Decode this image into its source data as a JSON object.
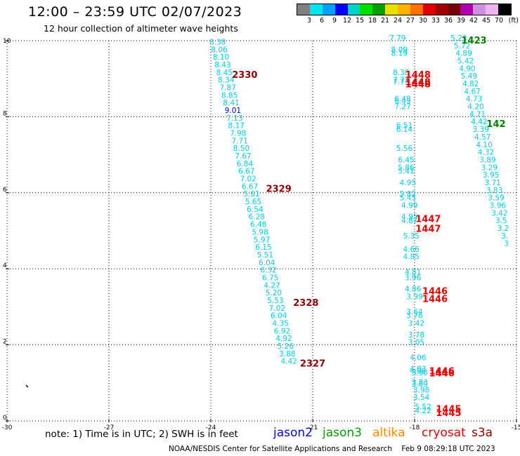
{
  "header": {
    "title": "12:00 – 23:59 UTC 02/07/2023",
    "subtitle": "12 hour collection of altimeter wave heights"
  },
  "legend": {
    "colors": [
      "#808080",
      "#00e5ee",
      "#00a0ff",
      "#0000ff",
      "#00d2c8",
      "#00e000",
      "#00a000",
      "#e8e000",
      "#ffb400",
      "#ff7000",
      "#e00000",
      "#a00000",
      "#780000",
      "#b000b0",
      "#d090e0",
      "#f0b4f0",
      "#000000"
    ],
    "labels": [
      "3",
      "6",
      "9",
      "12",
      "15",
      "18",
      "21",
      "24",
      "27",
      "30",
      "33",
      "36",
      "39",
      "42",
      "45",
      "70"
    ],
    "unit": "(ft)"
  },
  "map": {
    "x_ticks": [
      "-30",
      "-27",
      "-24",
      "-21",
      "-18",
      "-15"
    ],
    "y_ticks": [
      "0",
      "2",
      "4",
      "6",
      "8",
      "10"
    ]
  },
  "tracks": [
    {
      "color": "#00ccee",
      "points": [
        [
          -23.8,
          9.9,
          "8.38"
        ],
        [
          -23.75,
          9.7,
          "8.06"
        ],
        [
          -23.7,
          9.5,
          "8.10"
        ],
        [
          -23.65,
          9.3,
          "8.43"
        ],
        [
          -23.6,
          9.1,
          "8.45"
        ],
        [
          -23.55,
          8.9,
          "8.34"
        ],
        [
          -23.5,
          8.7,
          "7.87"
        ],
        [
          -23.45,
          8.5,
          "8.85"
        ],
        [
          -23.4,
          8.3,
          "8.41"
        ],
        [
          -23.35,
          8.1,
          "9.01"
        ],
        [
          -23.3,
          7.9,
          "7.13"
        ],
        [
          -23.25,
          7.7,
          "8.17"
        ],
        [
          -23.2,
          7.5,
          "7.98"
        ],
        [
          -23.15,
          7.3,
          "7.71"
        ],
        [
          -23.1,
          7.1,
          "8.50"
        ],
        [
          -23.05,
          6.9,
          "7.67"
        ],
        [
          -23.0,
          6.7,
          "6.84"
        ],
        [
          -22.95,
          6.5,
          "6.67"
        ],
        [
          -22.9,
          6.3,
          "7.02"
        ],
        [
          -22.85,
          6.1,
          "6.67"
        ],
        [
          -22.8,
          5.9,
          "5.61"
        ],
        [
          -22.75,
          5.7,
          "5.65"
        ],
        [
          -22.7,
          5.5,
          "6.54"
        ],
        [
          -22.65,
          5.3,
          "6.28"
        ],
        [
          -22.6,
          5.1,
          "6.48"
        ],
        [
          -22.55,
          4.9,
          "5.98"
        ],
        [
          -22.5,
          4.7,
          "5.97"
        ],
        [
          -22.45,
          4.5,
          "6.15"
        ],
        [
          -22.4,
          4.3,
          "5.51"
        ],
        [
          -22.35,
          4.1,
          "6.04"
        ],
        [
          -22.3,
          3.9,
          "6.32"
        ],
        [
          -22.25,
          3.7,
          "6.75"
        ],
        [
          -22.2,
          3.5,
          "4.27"
        ],
        [
          -22.15,
          3.3,
          "5.20"
        ],
        [
          -22.1,
          3.1,
          "5.53"
        ],
        [
          -22.05,
          2.9,
          "7.02"
        ],
        [
          -22.0,
          2.7,
          "6.04"
        ],
        [
          -21.95,
          2.5,
          "4.35"
        ],
        [
          -21.9,
          2.3,
          "6.92"
        ],
        [
          -21.85,
          2.1,
          "4.92"
        ],
        [
          -21.8,
          1.9,
          "5.26"
        ],
        [
          -21.75,
          1.7,
          "3.88"
        ],
        [
          -21.7,
          1.5,
          "4.42"
        ]
      ]
    },
    {
      "color": "#00ccee",
      "points": [
        [
          -18.5,
          10.0,
          "7.79"
        ],
        [
          -18.45,
          9.7,
          "8.09"
        ],
        [
          -18.45,
          9.6,
          "8.19"
        ],
        [
          -18.4,
          9.1,
          "8.38"
        ],
        [
          -18.4,
          8.9,
          "7.72"
        ],
        [
          -18.4,
          8.85,
          "7.73"
        ],
        [
          -18.35,
          8.4,
          "6.48"
        ],
        [
          -18.35,
          8.35,
          "6.43"
        ],
        [
          -18.35,
          8.2,
          "7.27"
        ],
        [
          -18.3,
          7.7,
          "6.51"
        ],
        [
          -18.3,
          7.6,
          "6.14"
        ],
        [
          -18.3,
          7.1,
          "5.56"
        ],
        [
          -18.25,
          6.8,
          "6.45"
        ],
        [
          -18.25,
          6.6,
          "5.86"
        ],
        [
          -18.25,
          6.5,
          "5.41"
        ],
        [
          -18.2,
          6.2,
          "4.95"
        ],
        [
          -18.2,
          5.9,
          "5.82"
        ],
        [
          -18.2,
          5.8,
          "5.45"
        ],
        [
          -18.15,
          5.6,
          "4.99"
        ],
        [
          -18.15,
          5.3,
          "4.95"
        ],
        [
          -18.15,
          5.2,
          "4.87"
        ],
        [
          -18.1,
          4.8,
          "5.35"
        ],
        [
          -18.1,
          4.45,
          "4.66"
        ],
        [
          -18.1,
          4.25,
          "4.85"
        ],
        [
          -18.05,
          3.85,
          "4.81"
        ],
        [
          -18.05,
          3.7,
          "3.96"
        ],
        [
          -18.05,
          3.4,
          "4.86"
        ],
        [
          -18.0,
          3.2,
          "3.99"
        ],
        [
          -18.0,
          2.8,
          "3.64"
        ],
        [
          -18.0,
          2.7,
          "3.76"
        ],
        [
          -17.95,
          2.5,
          "3.42"
        ],
        [
          -17.95,
          2.2,
          "3.78"
        ],
        [
          -17.95,
          2.0,
          "3.05"
        ],
        [
          -17.9,
          1.6,
          "4.06"
        ],
        [
          -17.9,
          1.3,
          "4.03"
        ],
        [
          -17.9,
          1.25,
          "4.08"
        ],
        [
          -17.85,
          1.2,
          "3.90"
        ],
        [
          -17.85,
          0.95,
          "3.83"
        ],
        [
          -17.85,
          0.9,
          "3.69"
        ],
        [
          -17.8,
          0.75,
          "3.98"
        ],
        [
          -17.8,
          0.55,
          "3.54"
        ],
        [
          -17.75,
          0.3,
          "5.52"
        ],
        [
          -17.75,
          0.2,
          "4.22"
        ]
      ]
    },
    {
      "color": "#00ccee",
      "points": [
        [
          -16.7,
          10.0,
          "5.23"
        ],
        [
          -16.6,
          9.8,
          "5.72"
        ],
        [
          -16.55,
          9.6,
          "4.89"
        ],
        [
          -16.5,
          9.4,
          "5.42"
        ],
        [
          -16.45,
          9.2,
          "4.90"
        ],
        [
          -16.4,
          9.0,
          "5.49"
        ],
        [
          -16.35,
          8.8,
          "4.82"
        ],
        [
          -16.3,
          8.6,
          "4.67"
        ],
        [
          -16.25,
          8.4,
          "4.73"
        ],
        [
          -16.2,
          8.2,
          "4.20"
        ],
        [
          -16.15,
          8.0,
          "4.71"
        ],
        [
          -16.1,
          7.8,
          "4.42"
        ],
        [
          -16.05,
          7.6,
          "3.39"
        ],
        [
          -16.0,
          7.4,
          "4.57"
        ],
        [
          -15.95,
          7.2,
          "4.10"
        ],
        [
          -15.9,
          7.0,
          "4.32"
        ],
        [
          -15.85,
          6.8,
          "3.89"
        ],
        [
          -15.8,
          6.6,
          "3.29"
        ],
        [
          -15.75,
          6.4,
          "3.95"
        ],
        [
          -15.7,
          6.2,
          "3.71"
        ],
        [
          -15.65,
          6.0,
          "3.83"
        ],
        [
          -15.6,
          5.8,
          "3.59"
        ],
        [
          -15.55,
          5.6,
          "3.96"
        ],
        [
          -15.5,
          5.4,
          "3.42"
        ],
        [
          -15.45,
          5.2,
          "3.5"
        ],
        [
          -15.4,
          5.0,
          "3.2"
        ],
        [
          -15.35,
          4.8,
          "3."
        ],
        [
          -15.3,
          4.6,
          "3"
        ]
      ]
    }
  ],
  "pass_labels": [
    {
      "text": "2330",
      "color": "#8b0000",
      "x": -23.0,
      "y": 9.1
    },
    {
      "text": "2329",
      "color": "#8b0000",
      "x": -22.0,
      "y": 6.1
    },
    {
      "text": "2328",
      "color": "#8b0000",
      "x": -21.2,
      "y": 3.1
    },
    {
      "text": "2327",
      "color": "#8b0000",
      "x": -21.0,
      "y": 1.5
    },
    {
      "text": "1448",
      "color": "#ee0000",
      "x": -17.9,
      "y": 9.1
    },
    {
      "text": "1448",
      "color": "#ee0000",
      "x": -17.9,
      "y": 8.9
    },
    {
      "text": "1448",
      "color": "#ee0000",
      "x": -17.9,
      "y": 8.85
    },
    {
      "text": "1447",
      "color": "#ee0000",
      "x": -17.6,
      "y": 5.3
    },
    {
      "text": "1447",
      "color": "#ee0000",
      "x": -17.6,
      "y": 5.05
    },
    {
      "text": "1446",
      "color": "#ee0000",
      "x": -17.4,
      "y": 3.4
    },
    {
      "text": "1446",
      "color": "#ee0000",
      "x": -17.4,
      "y": 3.2
    },
    {
      "text": "1446",
      "color": "#ee0000",
      "x": -17.2,
      "y": 1.3
    },
    {
      "text": "1446",
      "color": "#ee0000",
      "x": -17.2,
      "y": 1.25
    },
    {
      "text": "1445",
      "color": "#ee0000",
      "x": -17.0,
      "y": 0.3
    },
    {
      "text": "1445",
      "color": "#ee0000",
      "x": -17.0,
      "y": 0.2
    },
    {
      "text": "1423",
      "color": "#008000",
      "x": -16.25,
      "y": 10.0
    },
    {
      "text": "142",
      "color": "#008000",
      "x": -15.6,
      "y": 7.8
    }
  ],
  "footer": {
    "note": "note:  1) Time is in UTC;  2) SWH is in feet",
    "satellites": [
      {
        "name": "jason2",
        "color": "#0000ff"
      },
      {
        "name": "jason3",
        "color": "#00a000"
      },
      {
        "name": "altika",
        "color": "#ff8c00"
      },
      {
        "name": "cryosat",
        "color": "#ee0000"
      },
      {
        "name": "s3a",
        "color": "#8b0000"
      }
    ],
    "credit": "NOAA/NESDIS Center for Satellite Applications and Research",
    "timestamp": "Feb  9 08:29:18 UTC 2023"
  }
}
